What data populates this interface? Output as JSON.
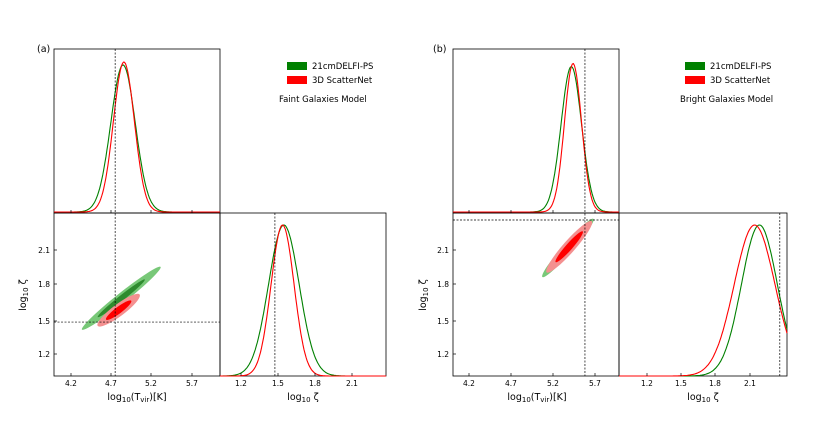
{
  "chart_data": [
    {
      "type": "corner-plot",
      "panel_label": "(a)",
      "model_label": "Faint Galaxies Model",
      "legend": [
        {
          "name": "21cmDELFI-PS",
          "color": "#008000"
        },
        {
          "name": "3D ScatterNet",
          "color": "#ff0000"
        }
      ],
      "params": {
        "x": {
          "label_main": "log",
          "label_sub": "10",
          "label_rest": "(T",
          "label_sub2": "vir",
          "label_end": ")[K]",
          "ticks": [
            "4.2",
            "4.7",
            "5.2",
            "5.7"
          ],
          "range": [
            4.0,
            5.9
          ]
        },
        "y": {
          "label_main": "log",
          "label_sub": "10",
          "label_end": "ζ",
          "ticks": [
            "1.2",
            "1.5",
            "1.8",
            "2.1"
          ],
          "range": [
            1.05,
            2.35
          ]
        }
      },
      "truth": {
        "x": 4.7,
        "y": 1.48
      },
      "marginal_x": {
        "green": {
          "mu": 4.79,
          "sigma": 0.14,
          "peak": 0.98
        },
        "red": {
          "mu": 4.8,
          "sigma": 0.12,
          "peak": 1.0
        }
      },
      "marginal_y": {
        "green": {
          "mu": 1.55,
          "sigma": 0.12,
          "peak": 1.0
        },
        "red": {
          "mu": 1.54,
          "sigma": 0.09,
          "peak": 1.0
        }
      },
      "joint": {
        "green": {
          "from": [
            4.32,
            1.42
          ],
          "to": [
            5.22,
            1.92
          ]
        },
        "red": {
          "from": [
            4.5,
            1.45
          ],
          "to": [
            4.98,
            1.7
          ]
        }
      }
    },
    {
      "type": "corner-plot",
      "panel_label": "(b)",
      "model_label": "Bright Galaxies Model",
      "legend": [
        {
          "name": "21cmDELFI-PS",
          "color": "#008000"
        },
        {
          "name": "3D ScatterNet",
          "color": "#ff0000"
        }
      ],
      "params": {
        "x": {
          "label_main": "log",
          "label_sub": "10",
          "label_rest": "(T",
          "label_sub2": "vir",
          "label_end": ")[K]",
          "ticks": [
            "4.2",
            "4.7",
            "5.2",
            "5.7"
          ],
          "range": [
            3.95,
            5.9
          ]
        },
        "y": {
          "label_main": "log",
          "label_sub": "10",
          "label_end": "ζ",
          "ticks": [
            "1.2",
            "1.5",
            "1.8",
            "2.1"
          ],
          "range": [
            0.95,
            2.35
          ]
        }
      },
      "truth": {
        "x": 5.5,
        "y": 2.29
      },
      "marginal_x": {
        "green": {
          "mu": 5.34,
          "sigma": 0.12,
          "peak": 0.97
        },
        "red": {
          "mu": 5.36,
          "sigma": 0.1,
          "peak": 0.99
        }
      },
      "marginal_y": {
        "green": {
          "mu": 2.12,
          "sigma": 0.15,
          "peak": 1.0
        },
        "red": {
          "mu": 2.08,
          "sigma": 0.17,
          "peak": 1.0
        }
      },
      "joint": {
        "green": {
          "from": [
            5.0,
            1.8
          ],
          "to": [
            5.6,
            2.3
          ]
        },
        "red": {
          "from": [
            5.05,
            1.84
          ],
          "to": [
            5.58,
            2.28
          ]
        }
      }
    }
  ]
}
